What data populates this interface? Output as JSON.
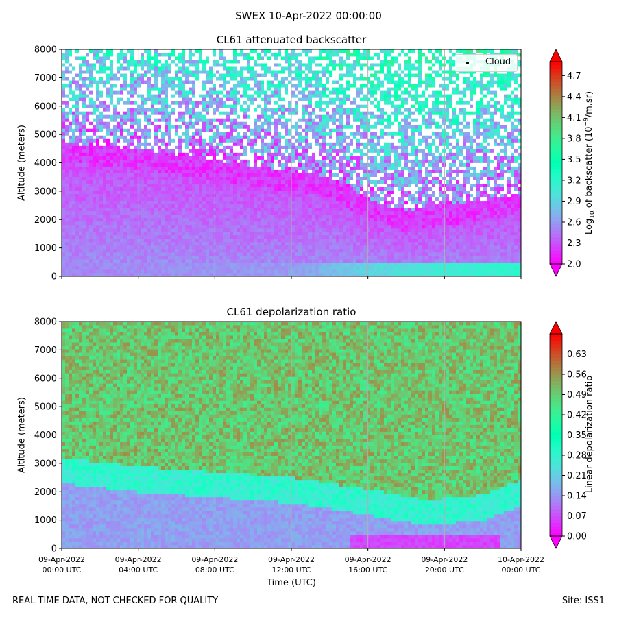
{
  "figure": {
    "suptitle": "SWEX 10-Apr-2022 00:00:00",
    "footer_left": "REAL TIME DATA, NOT CHECKED FOR QUALITY",
    "footer_right": "Site: ISS1"
  },
  "chart_data": [
    {
      "type": "heatmap",
      "title": "CL61 attenuated backscatter",
      "xlabel": "",
      "ylabel": "Altitude (meters)",
      "ylim": [
        0,
        8000
      ],
      "yticks": [
        0,
        1000,
        2000,
        3000,
        4000,
        5000,
        6000,
        7000,
        8000
      ],
      "xlim_hours": [
        0,
        24
      ],
      "xticks_hours": [
        0,
        4,
        8,
        12,
        16,
        20,
        24
      ],
      "grid": "vertical",
      "colormap": "rainbow",
      "colorbar": {
        "label_prefix": "Log",
        "label_sub": "10",
        "label_mid": " of backscatter (10",
        "label_sup": "−9",
        "label_suffix": "/m.sr)",
        "vmin": 2.0,
        "vmax": 4.9,
        "ticks": [
          "2.0",
          "2.3",
          "2.6",
          "2.9",
          "3.2",
          "3.5",
          "3.8",
          "4.1",
          "4.4",
          "4.7"
        ],
        "extend": "both"
      },
      "legend": {
        "entries": [
          "Cloud"
        ],
        "placement": "upper-right"
      },
      "features": {
        "aerosol_layer_top_m": [
          [
            0,
            4000
          ],
          [
            4,
            3800
          ],
          [
            8,
            3400
          ],
          [
            12,
            3000
          ],
          [
            14,
            2800
          ],
          [
            16,
            2000
          ],
          [
            18,
            1600
          ],
          [
            20,
            1800
          ],
          [
            24,
            2200
          ]
        ],
        "surface_layer_value_by_hour": [
          [
            0,
            2.5
          ],
          [
            12,
            2.6
          ],
          [
            16,
            2.9
          ],
          [
            20,
            3.1
          ],
          [
            24,
            3.2
          ]
        ]
      }
    },
    {
      "type": "heatmap",
      "title": "CL61 depolarization ratio",
      "xlabel": "Time (UTC)",
      "ylabel": "Altitude (meters)",
      "ylim": [
        0,
        8000
      ],
      "yticks": [
        0,
        1000,
        2000,
        3000,
        4000,
        5000,
        6000,
        7000,
        8000
      ],
      "xlim_hours": [
        0,
        24
      ],
      "xticks_hours": [
        0,
        4,
        8,
        12,
        16,
        20,
        24
      ],
      "xtick_labels": [
        [
          "09-Apr-2022",
          "00:00 UTC"
        ],
        [
          "09-Apr-2022",
          "04:00 UTC"
        ],
        [
          "09-Apr-2022",
          "08:00 UTC"
        ],
        [
          "09-Apr-2022",
          "12:00 UTC"
        ],
        [
          "09-Apr-2022",
          "16:00 UTC"
        ],
        [
          "09-Apr-2022",
          "20:00 UTC"
        ],
        [
          "10-Apr-2022",
          "00:00 UTC"
        ]
      ],
      "grid": "vertical",
      "colormap": "rainbow",
      "colorbar": {
        "label": "Linear depolarization ratio",
        "vmin": 0.0,
        "vmax": 0.7,
        "ticks": [
          "0.00",
          "0.07",
          "0.14",
          "0.21",
          "0.28",
          "0.35",
          "0.42",
          "0.49",
          "0.56",
          "0.63"
        ],
        "extend": "both"
      },
      "features": {
        "boundary_layer_top_m": [
          [
            0,
            2800
          ],
          [
            4,
            2500
          ],
          [
            8,
            2300
          ],
          [
            12,
            2100
          ],
          [
            16,
            1700
          ],
          [
            19,
            1300
          ],
          [
            22,
            1500
          ],
          [
            24,
            2000
          ]
        ],
        "free_troposphere_value": 0.5,
        "boundary_layer_value": 0.15
      }
    }
  ]
}
